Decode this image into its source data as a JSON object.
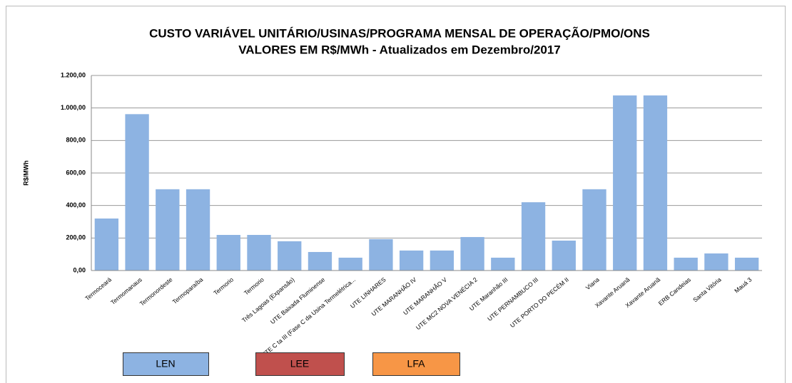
{
  "chart_data": {
    "type": "bar",
    "title": "CUSTO VARIÁVEL UNITÁRIO/USINAS/PROGRAMA MENSAL DE OPERAÇÃO/PMO/ONS",
    "subtitle": "VALORES EM R$/MWh - Atualizados em Dezembro/2017",
    "y_label": "R$/MWh",
    "categories": [
      "Termoceará",
      "Termomanaus",
      "Termonordeste",
      "Termoparaíba",
      "Termorio",
      "Termorio",
      "Três Lagoas (Expansão)",
      "UTE Baixada Fluminense",
      "UTE C ta III (Fase C da Usina Termelétrica...",
      "UTE LINHARES",
      "UTE MARANHÃO IV",
      "UTE MARANHÃO V",
      "UTE MC2 NOVA VENÉCIA 2",
      "UTE Maranhão III",
      "UTE PERNAMBUCO III",
      "UTE PORTO DO PECÉM II",
      "Viana",
      "Xavante Aruanã",
      "Xavante Aruanã",
      "ERB Candeias",
      "Santa Vitória",
      "Mauá 3"
    ],
    "values": [
      320,
      962,
      500,
      500,
      219,
      219,
      180,
      114,
      79,
      193,
      123,
      123,
      206,
      79,
      420,
      184,
      500,
      1077,
      1077,
      79,
      105,
      79
    ],
    "color": "#8db3e2",
    "ylim": [
      0,
      1200
    ],
    "yticks": [
      {
        "value": 0,
        "label": "0,00"
      },
      {
        "value": 200,
        "label": "200,00"
      },
      {
        "value": 400,
        "label": "400,00"
      },
      {
        "value": 600,
        "label": "600,00"
      },
      {
        "value": 800,
        "label": "800,00"
      },
      {
        "value": 1000,
        "label": "1.000,00"
      },
      {
        "value": 1200,
        "label": "1.200,00"
      }
    ],
    "grid": true,
    "legend": [
      {
        "label": "LEN",
        "color": "#8db3e2"
      },
      {
        "label": "LEE",
        "color": "#c0504d"
      },
      {
        "label": "LFA",
        "color": "#f79646"
      }
    ]
  }
}
